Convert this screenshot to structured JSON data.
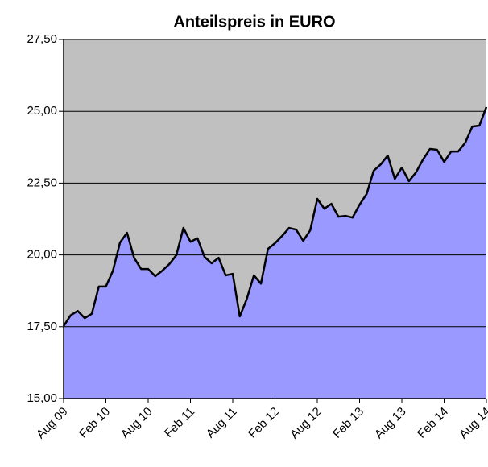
{
  "chart_data": {
    "type": "area",
    "title": "Anteilspreis in EURO",
    "categories": [
      "Aug 09",
      null,
      null,
      null,
      null,
      null,
      "Feb 10",
      null,
      null,
      null,
      null,
      null,
      "Aug 10",
      null,
      null,
      null,
      null,
      null,
      "Feb 11",
      null,
      null,
      null,
      null,
      null,
      "Aug 11",
      null,
      null,
      null,
      null,
      null,
      "Feb 12",
      null,
      null,
      null,
      null,
      null,
      "Aug 12",
      null,
      null,
      null,
      null,
      null,
      "Feb 13",
      null,
      null,
      null,
      null,
      null,
      "Aug 13",
      null,
      null,
      null,
      null,
      null,
      "Feb 14",
      null,
      null,
      null,
      null,
      null,
      "Aug 14"
    ],
    "values": [
      17.52,
      17.9,
      18.05,
      17.8,
      17.95,
      18.9,
      18.9,
      19.45,
      20.43,
      20.77,
      19.9,
      19.51,
      19.51,
      19.26,
      19.45,
      19.68,
      19.99,
      20.94,
      20.46,
      20.58,
      19.93,
      19.71,
      19.9,
      19.29,
      19.34,
      17.86,
      18.47,
      19.29,
      19.0,
      20.21,
      20.41,
      20.66,
      20.94,
      20.88,
      20.49,
      20.86,
      21.95,
      21.61,
      21.78,
      21.33,
      21.36,
      21.3,
      21.75,
      22.12,
      22.93,
      23.15,
      23.46,
      22.65,
      23.04,
      22.57,
      22.87,
      23.32,
      23.69,
      23.66,
      23.24,
      23.6,
      23.6,
      23.91,
      24.47,
      24.5,
      25.15
    ],
    "color": "#9999ff",
    "line_color": "#000000",
    "background": "#c0c0c0",
    "ylim": [
      15,
      27.5
    ],
    "yticks": [
      {
        "value": 15,
        "label": "15,00"
      },
      {
        "value": 17.5,
        "label": "17,50"
      },
      {
        "value": 20,
        "label": "20,00"
      },
      {
        "value": 22.5,
        "label": "22,50"
      },
      {
        "value": 25,
        "label": "25,00"
      },
      {
        "value": 27.5,
        "label": "27,50"
      }
    ],
    "grid": true
  }
}
